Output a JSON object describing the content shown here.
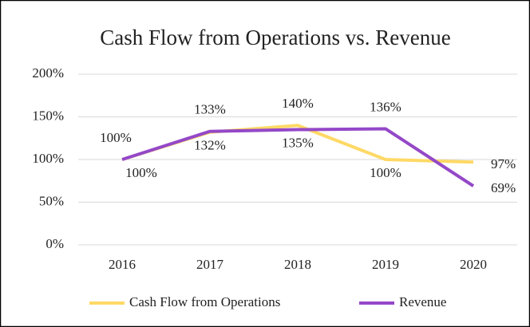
{
  "chart_data": {
    "type": "line",
    "title": "Cash Flow from Operations vs. Revenue",
    "categories": [
      "2016",
      "2017",
      "2018",
      "2019",
      "2020"
    ],
    "series": [
      {
        "name": "Cash Flow from Operations",
        "color": "#ffd966",
        "values": [
          100,
          132,
          140,
          100,
          97
        ],
        "value_labels": [
          "100%",
          "132%",
          "140%",
          "100%",
          "97%"
        ]
      },
      {
        "name": "Revenue",
        "color": "#9448c8",
        "values": [
          100,
          133,
          135,
          136,
          69
        ],
        "value_labels": [
          "100%",
          "133%",
          "135%",
          "136%",
          "69%"
        ]
      }
    ],
    "ylim": [
      0,
      200
    ],
    "yticks": [
      {
        "value": 0,
        "label": "0%"
      },
      {
        "value": 50,
        "label": "50%"
      },
      {
        "value": 100,
        "label": "100%"
      },
      {
        "value": 150,
        "label": "150%"
      },
      {
        "value": 200,
        "label": "200%"
      }
    ],
    "grid": true,
    "legend": "bottom"
  }
}
